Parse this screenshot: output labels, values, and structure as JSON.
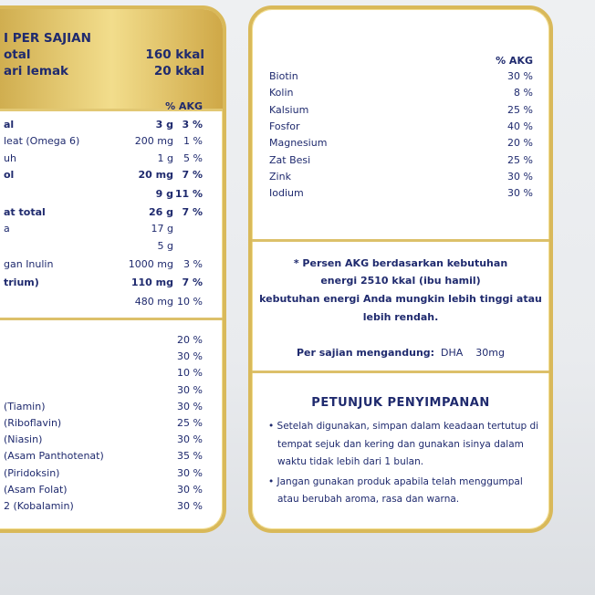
{
  "left": {
    "header": {
      "title": "I PER SAJIAN",
      "rows": [
        {
          "label": "otal",
          "value": "160 kkal"
        },
        {
          "label": "ari lemak",
          "value": "20 kkal"
        }
      ]
    },
    "akg_header": "% AKG",
    "nutrients": [
      {
        "label": "al",
        "amount": "3 g",
        "pct": "3 %",
        "bold": true
      },
      {
        "label": "leat (Omega 6)",
        "amount": "200 mg",
        "pct": "1 %",
        "bold": false
      },
      {
        "label": "uh",
        "amount": "1 g",
        "pct": "5 %",
        "bold": false
      },
      {
        "label": "ol",
        "amount": "20 mg",
        "pct": "7 %",
        "bold": true
      },
      {
        "label": "",
        "amount": "9 g",
        "pct": "11 %",
        "bold": true
      },
      {
        "label": "at total",
        "amount": "26 g",
        "pct": "7 %",
        "bold": true
      },
      {
        "label": "a",
        "amount": "17 g",
        "pct": "",
        "bold": false
      },
      {
        "label": "",
        "amount": "5 g",
        "pct": "",
        "bold": false
      },
      {
        "label": "gan Inulin",
        "amount": "1000 mg",
        "pct": "3 %",
        "bold": false
      },
      {
        "label": "trium)",
        "amount": "110 mg",
        "pct": "7 %",
        "bold": true
      },
      {
        "label": "",
        "amount": "480 mg",
        "pct": "10 %",
        "bold": false
      }
    ],
    "vitamins": [
      {
        "label": "",
        "pct": "20 %"
      },
      {
        "label": "",
        "pct": "30 %"
      },
      {
        "label": "",
        "pct": "10 %"
      },
      {
        "label": "",
        "pct": "30 %"
      },
      {
        "label": "(Tiamin)",
        "pct": "30 %"
      },
      {
        "label": "(Riboflavin)",
        "pct": "25 %"
      },
      {
        "label": "(Niasin)",
        "pct": "30 %"
      },
      {
        "label": "(Asam Panthotenat)",
        "pct": "35 %"
      },
      {
        "label": "(Piridoksin)",
        "pct": "30 %"
      },
      {
        "label": "(Asam Folat)",
        "pct": "30 %"
      },
      {
        "label": "2 (Kobalamin)",
        "pct": "30 %"
      }
    ]
  },
  "right": {
    "akg_header": "% AKG",
    "minerals": [
      {
        "label": "Biotin",
        "pct": "30 %"
      },
      {
        "label": "Kolin",
        "pct": "8 %"
      },
      {
        "label": "Kalsium",
        "pct": "25 %"
      },
      {
        "label": "Fosfor",
        "pct": "40 %"
      },
      {
        "label": "Magnesium",
        "pct": "20 %"
      },
      {
        "label": "Zat Besi",
        "pct": "25 %"
      },
      {
        "label": "Zink",
        "pct": "30 %"
      },
      {
        "label": "Iodium",
        "pct": "30 %"
      }
    ],
    "note_lines": [
      "* Persen AKG berdasarkan kebutuhan",
      "energi 2510 kkal (ibu hamil)",
      "kebutuhan energi Anda mungkin lebih tinggi atau",
      "lebih rendah."
    ],
    "per_serving_label": "Per sajian mengandung:",
    "per_serving_value": "DHA    30mg",
    "storage_title": "PETUNJUK  PENYIMPANAN",
    "storage_items": [
      "Setelah digunakan, simpan dalam keadaan tertutup di tempat sejuk dan kering dan gunakan isinya dalam waktu tidak lebih dari 1 bulan.",
      "Jangan gunakan produk apabila telah menggumpal atau berubah aroma, rasa dan warna."
    ]
  },
  "colors": {
    "text": "#1f2a6e",
    "gold": "#d9b95a"
  }
}
